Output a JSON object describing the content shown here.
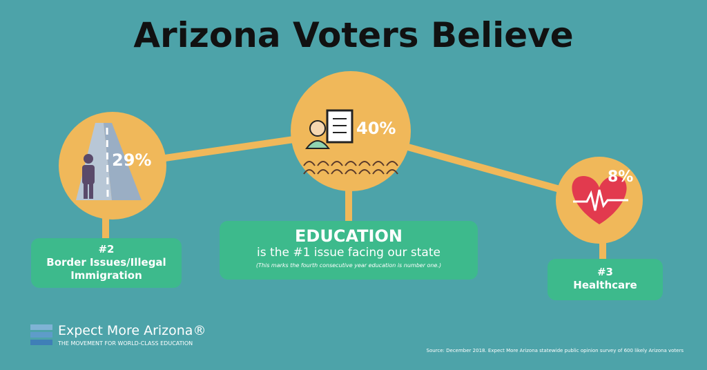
{
  "title": "Arizona Voters Believe",
  "left": {
    "percent": "29%",
    "rank": "#2",
    "label": "Border Issues/Illegal Immigration"
  },
  "center": {
    "percent": "40%",
    "heading": "EDUCATION",
    "subtitle": "is the #1 issue facing our state",
    "note": "(This marks the fourth consecutive year education is number one.)"
  },
  "right": {
    "percent": "8%",
    "rank": "#3",
    "label": "Healthcare"
  },
  "logo": {
    "name": "Expect More Arizona®",
    "tagline": "THE MOVEMENT FOR WORLD-CLASS EDUCATION"
  },
  "source": "Source: December 2018. Expect More Arizona statewide public opinion survey of 600 likely Arizona voters"
}
